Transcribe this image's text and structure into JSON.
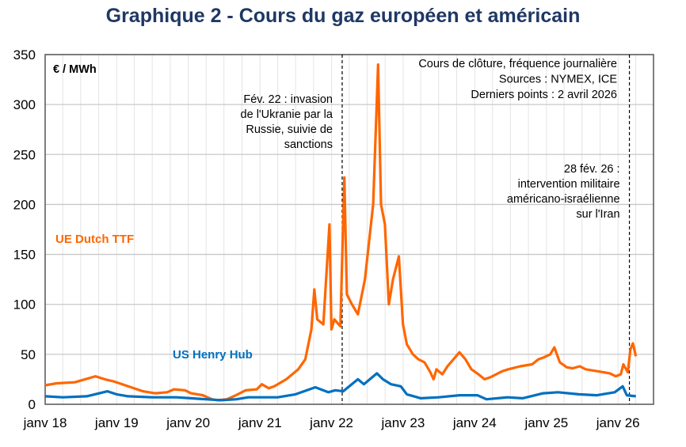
{
  "chart_data": {
    "type": "line",
    "title": "Graphique 2 - Cours du gaz européen et américain",
    "unit_label": "€ / MWh",
    "ylim": [
      0,
      350
    ],
    "yticks": [
      "0",
      "50",
      "100",
      "150",
      "200",
      "250",
      "300",
      "350"
    ],
    "xlim": [
      "2018-01-01",
      "2026-07-01"
    ],
    "xticks": [
      {
        "date": "2018-01-01",
        "label": "janv 18"
      },
      {
        "date": "2019-01-01",
        "label": "janv 19"
      },
      {
        "date": "2020-01-01",
        "label": "janv 20"
      },
      {
        "date": "2021-01-01",
        "label": "janv 21"
      },
      {
        "date": "2022-01-01",
        "label": "janv 22"
      },
      {
        "date": "2023-01-01",
        "label": "janv 23"
      },
      {
        "date": "2024-01-01",
        "label": "janv 24"
      },
      {
        "date": "2025-01-01",
        "label": "janv 25"
      },
      {
        "date": "2026-01-01",
        "label": "janv 26"
      }
    ],
    "grid": true,
    "notes": [
      "Cours de clôture, fréquence journalière",
      "Sources : NYMEX, ICE",
      "Derniers points : 2 avril 2026"
    ],
    "events": [
      {
        "date": "2022-02-24",
        "lines": [
          "Fév. 22 : invasion",
          "de l'Ukranie par la",
          "Russie, suivie de",
          "sanctions"
        ]
      },
      {
        "date": "2026-02-28",
        "lines": [
          "28 fév. 26 :",
          "intervention militaire",
          "américano-israélienne",
          "sur l'Iran"
        ]
      }
    ],
    "series": [
      {
        "name": "UE Dutch TTF",
        "color": "#ff6600",
        "points": [
          [
            "2018-01-01",
            19
          ],
          [
            "2018-03-01",
            21
          ],
          [
            "2018-06-01",
            22
          ],
          [
            "2018-09-15",
            28
          ],
          [
            "2018-11-01",
            25
          ],
          [
            "2018-12-15",
            23
          ],
          [
            "2019-01-15",
            21
          ],
          [
            "2019-03-15",
            17
          ],
          [
            "2019-05-15",
            13
          ],
          [
            "2019-07-15",
            11
          ],
          [
            "2019-09-15",
            12
          ],
          [
            "2019-10-20",
            15
          ],
          [
            "2019-12-15",
            14
          ],
          [
            "2020-01-15",
            11
          ],
          [
            "2020-03-15",
            9
          ],
          [
            "2020-05-01",
            5
          ],
          [
            "2020-06-01",
            4
          ],
          [
            "2020-07-15",
            5
          ],
          [
            "2020-08-20",
            8
          ],
          [
            "2020-09-20",
            11
          ],
          [
            "2020-10-20",
            14
          ],
          [
            "2020-12-15",
            15
          ],
          [
            "2021-01-10",
            20
          ],
          [
            "2021-02-15",
            16
          ],
          [
            "2021-03-15",
            18
          ],
          [
            "2021-05-15",
            25
          ],
          [
            "2021-07-15",
            35
          ],
          [
            "2021-08-20",
            45
          ],
          [
            "2021-09-20",
            75
          ],
          [
            "2021-10-05",
            115
          ],
          [
            "2021-10-20",
            85
          ],
          [
            "2021-11-20",
            80
          ],
          [
            "2021-12-21",
            180
          ],
          [
            "2021-12-31",
            75
          ],
          [
            "2022-01-15",
            85
          ],
          [
            "2022-02-15",
            78
          ],
          [
            "2022-03-07",
            227
          ],
          [
            "2022-03-20",
            110
          ],
          [
            "2022-04-15",
            100
          ],
          [
            "2022-05-15",
            90
          ],
          [
            "2022-06-20",
            125
          ],
          [
            "2022-07-15",
            170
          ],
          [
            "2022-08-01",
            200
          ],
          [
            "2022-08-26",
            340
          ],
          [
            "2022-09-10",
            200
          ],
          [
            "2022-09-30",
            180
          ],
          [
            "2022-10-20",
            100
          ],
          [
            "2022-11-10",
            125
          ],
          [
            "2022-12-10",
            148
          ],
          [
            "2022-12-31",
            80
          ],
          [
            "2023-01-20",
            60
          ],
          [
            "2023-02-20",
            50
          ],
          [
            "2023-03-20",
            45
          ],
          [
            "2023-04-20",
            42
          ],
          [
            "2023-05-20",
            32
          ],
          [
            "2023-06-05",
            25
          ],
          [
            "2023-06-20",
            35
          ],
          [
            "2023-07-20",
            30
          ],
          [
            "2023-08-15",
            38
          ],
          [
            "2023-10-15",
            52
          ],
          [
            "2023-11-15",
            45
          ],
          [
            "2023-12-15",
            35
          ],
          [
            "2024-01-20",
            30
          ],
          [
            "2024-02-20",
            25
          ],
          [
            "2024-03-20",
            27
          ],
          [
            "2024-04-20",
            30
          ],
          [
            "2024-05-20",
            33
          ],
          [
            "2024-06-20",
            35
          ],
          [
            "2024-08-20",
            38
          ],
          [
            "2024-10-20",
            40
          ],
          [
            "2024-11-20",
            45
          ],
          [
            "2024-12-20",
            47
          ],
          [
            "2025-01-20",
            50
          ],
          [
            "2025-02-10",
            57
          ],
          [
            "2025-03-10",
            42
          ],
          [
            "2025-04-15",
            37
          ],
          [
            "2025-05-15",
            36
          ],
          [
            "2025-06-20",
            38
          ],
          [
            "2025-07-20",
            35
          ],
          [
            "2025-09-20",
            33
          ],
          [
            "2025-11-20",
            31
          ],
          [
            "2025-12-20",
            28
          ],
          [
            "2026-01-15",
            30
          ],
          [
            "2026-01-28",
            40
          ],
          [
            "2026-02-20",
            32
          ],
          [
            "2026-03-05",
            55
          ],
          [
            "2026-03-18",
            61
          ],
          [
            "2026-04-02",
            48
          ]
        ]
      },
      {
        "name": "US Henry Hub",
        "color": "#0070c0",
        "points": [
          [
            "2018-01-01",
            8
          ],
          [
            "2018-04-01",
            7
          ],
          [
            "2018-08-01",
            8
          ],
          [
            "2018-11-15",
            13
          ],
          [
            "2018-12-31",
            10
          ],
          [
            "2019-03-01",
            8
          ],
          [
            "2019-07-01",
            7
          ],
          [
            "2019-11-01",
            7
          ],
          [
            "2020-01-15",
            6
          ],
          [
            "2020-04-01",
            5
          ],
          [
            "2020-06-15",
            4
          ],
          [
            "2020-09-01",
            5
          ],
          [
            "2020-11-01",
            7
          ],
          [
            "2021-01-15",
            7
          ],
          [
            "2021-04-01",
            7
          ],
          [
            "2021-07-01",
            10
          ],
          [
            "2021-10-10",
            17
          ],
          [
            "2021-12-15",
            12
          ],
          [
            "2022-01-20",
            14
          ],
          [
            "2022-03-01",
            13
          ],
          [
            "2022-05-15",
            25
          ],
          [
            "2022-06-15",
            20
          ],
          [
            "2022-08-20",
            31
          ],
          [
            "2022-09-20",
            25
          ],
          [
            "2022-11-01",
            20
          ],
          [
            "2022-12-20",
            18
          ],
          [
            "2023-01-20",
            10
          ],
          [
            "2023-04-01",
            6
          ],
          [
            "2023-07-01",
            7
          ],
          [
            "2023-10-15",
            9
          ],
          [
            "2024-01-15",
            9
          ],
          [
            "2024-03-01",
            5
          ],
          [
            "2024-06-15",
            7
          ],
          [
            "2024-09-01",
            6
          ],
          [
            "2024-12-15",
            11
          ],
          [
            "2025-03-01",
            12
          ],
          [
            "2025-06-15",
            10
          ],
          [
            "2025-09-15",
            9
          ],
          [
            "2025-12-15",
            12
          ],
          [
            "2026-01-25",
            18
          ],
          [
            "2026-02-15",
            9
          ],
          [
            "2026-04-02",
            8
          ]
        ]
      }
    ]
  }
}
